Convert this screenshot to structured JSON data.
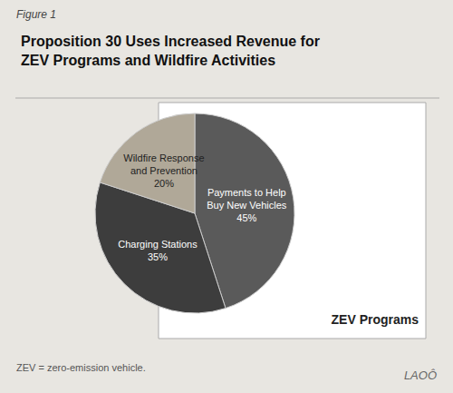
{
  "chart_data": {
    "type": "pie",
    "title": "Proposition 30 Uses Increased Revenue for\nZEV Programs and Wildfire Activities",
    "categories": [
      "Payments to Help\nBuy New Vehicles",
      "Charging Stations",
      "Wildfire Response\nand Prevention"
    ],
    "values": [
      45,
      35,
      20
    ],
    "value_labels": [
      "45%",
      "35%",
      "20%"
    ],
    "colors": [
      "#5a5a5a",
      "#3d3d3d",
      "#b0a898"
    ],
    "data_labels": true,
    "annotations": [
      "Figure 1",
      "ZEV Programs",
      "ZEV = zero-emission vehicle.",
      "LAOÔ"
    ]
  }
}
